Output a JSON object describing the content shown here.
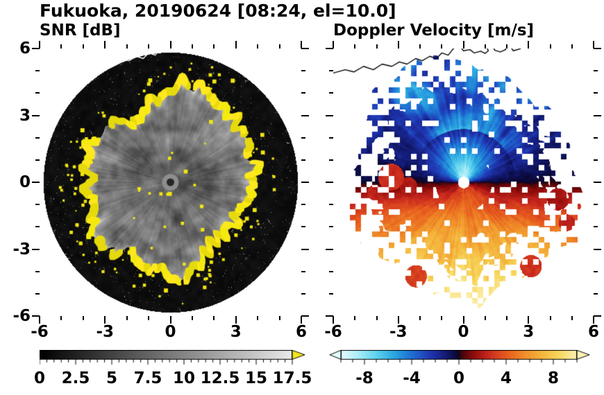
{
  "title": "Fukuoka, 20190624 [08:24, el=10.0]",
  "panels": [
    {
      "label": "SNR [dB]"
    },
    {
      "label": "Doppler Velocity [m/s]"
    }
  ],
  "axes": {
    "range": [
      -6,
      6
    ],
    "minor_step": 1,
    "x_ticks": [
      {
        "v": -6,
        "label": "-6"
      },
      {
        "v": -3,
        "label": "-3"
      },
      {
        "v": 0,
        "label": "0"
      },
      {
        "v": 3,
        "label": "3"
      },
      {
        "v": 6,
        "label": "6"
      }
    ],
    "y_ticks": [
      {
        "v": 6,
        "label": "6"
      },
      {
        "v": 3,
        "label": "3"
      },
      {
        "v": 0,
        "label": "0"
      },
      {
        "v": -3,
        "label": "-3"
      },
      {
        "v": -6,
        "label": "-6"
      }
    ]
  },
  "colorbars": [
    {
      "name": "snr",
      "range": [
        0,
        17.5
      ],
      "minor_step": 0.5,
      "ticks": [
        {
          "v": 0,
          "label": "0"
        },
        {
          "v": 2.5,
          "label": "2.5"
        },
        {
          "v": 5,
          "label": "5"
        },
        {
          "v": 7.5,
          "label": "7.5"
        },
        {
          "v": 10,
          "label": "10"
        },
        {
          "v": 12.5,
          "label": "12.5"
        },
        {
          "v": 15,
          "label": "15"
        },
        {
          "v": 17.5,
          "label": "17.5"
        }
      ],
      "over_color": "#f2e71c",
      "stops": [
        [
          0,
          "#000000"
        ],
        [
          17.5,
          "#e9e9e9"
        ]
      ]
    },
    {
      "name": "velocity",
      "range": [
        -10,
        10
      ],
      "minor_step": 1,
      "ticks": [
        {
          "v": -8,
          "label": "-8"
        },
        {
          "v": -4,
          "label": "-4"
        },
        {
          "v": 0,
          "label": "0"
        },
        {
          "v": 4,
          "label": "4"
        },
        {
          "v": 8,
          "label": "8"
        }
      ],
      "under_color": "#e2fdfd",
      "over_color": "#fdf0b4",
      "stops": [
        [
          -10,
          "#e2fdfd"
        ],
        [
          -8.5,
          "#a8ecf6"
        ],
        [
          -7,
          "#5cd2ee"
        ],
        [
          -5.5,
          "#2aa6e0"
        ],
        [
          -4,
          "#1e6ed2"
        ],
        [
          -2.5,
          "#2038b4"
        ],
        [
          -1.2,
          "#141c78"
        ],
        [
          -0.3,
          "#0a0a3c"
        ],
        [
          0,
          "#14051e"
        ],
        [
          0.3,
          "#46060a"
        ],
        [
          1.2,
          "#8c0a0a"
        ],
        [
          2.5,
          "#c8281e"
        ],
        [
          4,
          "#e65a1e"
        ],
        [
          5.5,
          "#f08c28"
        ],
        [
          7,
          "#f4b43c"
        ],
        [
          8.5,
          "#f8d75c"
        ],
        [
          10,
          "#fdf0b4"
        ]
      ]
    }
  ],
  "coastline": {
    "color_on_snr": "#ffffff",
    "color_on_velocity": "#000000",
    "segments": [
      [
        [
          -6,
          4.9
        ],
        [
          -5.45,
          5.05
        ],
        [
          -5.05,
          4.95
        ],
        [
          -4.6,
          5.2
        ],
        [
          -4.15,
          5.05
        ],
        [
          -3.75,
          5.3
        ],
        [
          -3.3,
          5.2
        ],
        [
          -2.95,
          5.4
        ],
        [
          -2.6,
          5.3
        ],
        [
          -2.2,
          5.55
        ],
        [
          -1.9,
          5.45
        ],
        [
          -1.55,
          5.65
        ],
        [
          -1.25,
          5.55
        ],
        [
          -1.0,
          5.8
        ],
        [
          -0.7,
          5.7
        ],
        [
          -0.5,
          5.95
        ],
        [
          -0.35,
          6.1
        ]
      ],
      [
        [
          -0.15,
          6.1
        ],
        [
          0.0,
          5.9
        ],
        [
          0.3,
          5.95
        ],
        [
          0.5,
          5.8
        ],
        [
          0.8,
          5.88
        ],
        [
          1.0,
          5.78
        ],
        [
          1.15,
          5.9
        ],
        [
          1.05,
          6.1
        ]
      ],
      [
        [
          1.35,
          6.1
        ],
        [
          1.45,
          5.92
        ],
        [
          1.7,
          5.85
        ],
        [
          1.95,
          5.95
        ],
        [
          1.9,
          6.1
        ]
      ],
      [
        [
          2.15,
          6.1
        ],
        [
          2.3,
          5.9
        ],
        [
          2.6,
          5.98
        ],
        [
          2.75,
          6.1
        ]
      ]
    ]
  },
  "chart_data": [
    {
      "type": "heatmap",
      "title": "SNR [dB]",
      "x_range": [
        -6,
        6
      ],
      "y_range": [
        -6,
        6
      ],
      "x_ticks": [
        -6,
        -3,
        0,
        3,
        6
      ],
      "y_ticks": [
        -6,
        -3,
        0,
        3,
        6
      ],
      "grid": false,
      "colorbar": {
        "range": [
          0,
          17.5
        ],
        "ticks": [
          0,
          2.5,
          5,
          7.5,
          10,
          12.5,
          15,
          17.5
        ],
        "colormap": "grayscale black-to-white",
        "over_arrow": "yellow (> 17.5 dB)"
      },
      "content": {
        "scan_disk_radius": 5.8,
        "background_snr_db": 0,
        "echo_region_radius_range": [
          2.6,
          4.9
        ],
        "echo_snr_db_range": [
          5,
          13
        ],
        "rim": "jagged yellow ring of saturated SNR (>17.5 dB) along the echo edge with gaps and detached specks",
        "center": "small dark spot at radar site (0,0) inside gray disc",
        "texture": "radial speckle and faint spoke streaks; sparse bright speckles in black outer region",
        "overlay": "white coastline trace across the top of the disk"
      }
    },
    {
      "type": "heatmap",
      "title": "Doppler Velocity [m/s]",
      "x_range": [
        -6,
        6
      ],
      "y_range": [
        -6,
        6
      ],
      "x_ticks": [
        -6,
        -3,
        0,
        3,
        6
      ],
      "y_ticks": [
        -6,
        -3,
        0,
        3,
        6
      ],
      "grid": false,
      "colorbar": {
        "range": [
          -10,
          10
        ],
        "ticks": [
          -8,
          -4,
          0,
          4,
          8
        ],
        "colormap": "diverging: pale-cyan/cyan/blue/navy for negative, dark-red/red/orange/yellow/pale-yellow for positive",
        "under_arrow": "pale cyan (< -10)",
        "over_arrow": "pale yellow (> +10)"
      },
      "content": {
        "north_half": "negative velocity (toward radar): -8 to -10 m/s pale-cyan fan within ~2 km of center weakening to -1 to -4 m/s navy/blue at 2.5-5 km; detached blue blocky patches to the NE",
        "south_half": "positive velocity (away from radar): +3 to +5 m/s orange near center increasing to +7 to +9 m/s yellow at 3-5 km range",
        "west_blob": "+2 to +3 m/s red patch near (-3.4, 0.2)",
        "east_edge_patches": "+1 to +3 m/s dark red patches near (4.4, -0.8) and (4.7, -1.8)",
        "zero_line": "east-west through radar; colors darkest (navy/dark red) near zero velocity",
        "center": "small white data gap at radar site",
        "overlay": "black coastline trace across the top"
      }
    }
  ]
}
